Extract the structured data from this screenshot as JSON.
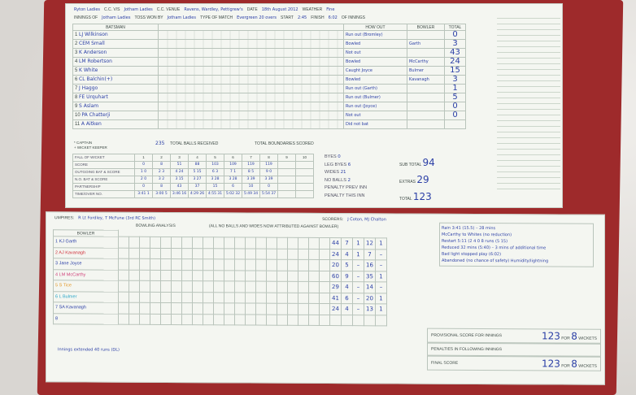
{
  "header": {
    "home_team": "Ryton Ladies",
    "cc_vs_label": "C.C. V/S",
    "opponent": "Jotham Ladies",
    "venue_label": "C.C. VENUE",
    "venue": "Ravens, Wardley, Pettigrew's",
    "date_label": "DATE",
    "date": "18th August 2012",
    "weather_label": "WEATHER",
    "weather": "Fine",
    "innings_of_label": "INNINGS OF",
    "innings_of": "Jotham Ladies",
    "toss_label": "TOSS WON BY",
    "toss": "Jotham Ladies",
    "match_type_label": "TYPE OF MATCH",
    "match_type": "Evergreen 20 overs",
    "start_label": "START",
    "start": "2:45",
    "finish_label": "FINISH",
    "finish": "6:02",
    "of_innings_label": "OF INNINGS"
  },
  "columns": {
    "batsman": "BATSMAN",
    "how_out": "HOW OUT",
    "bowler": "BOWLER",
    "total": "TOTAL"
  },
  "batsmen": [
    {
      "no": "1",
      "name": "LJ Wilkinson",
      "how_out": "Run out (Bromley)",
      "bowler": "",
      "total": "0"
    },
    {
      "no": "2",
      "name": "CEM Small",
      "how_out": "Bowled",
      "bowler": "Garth",
      "total": "3"
    },
    {
      "no": "3",
      "name": "K Anderson",
      "how_out": "Not out",
      "bowler": "",
      "total": "43"
    },
    {
      "no": "4",
      "name": "LM Robertson",
      "how_out": "Bowled",
      "bowler": "McCarthy",
      "total": "24"
    },
    {
      "no": "5",
      "name": "K White",
      "how_out": "Caught Joyce",
      "bowler": "Bulmer",
      "total": "15"
    },
    {
      "no": "6",
      "name": "CL Balchin(+)",
      "how_out": "Bowled",
      "bowler": "Kavanagh",
      "total": "3"
    },
    {
      "no": "7",
      "name": "J Haggo",
      "how_out": "Run out (Garth)",
      "bowler": "",
      "total": "1"
    },
    {
      "no": "8",
      "name": "FE Urquhart",
      "how_out": "Run out (Bulmer)",
      "bowler": "",
      "total": "5"
    },
    {
      "no": "9",
      "name": "S Aslam",
      "how_out": "Run out (Joyce)",
      "bowler": "",
      "total": "0"
    },
    {
      "no": "10",
      "name": "PA Chatterji",
      "how_out": "Not out",
      "bowler": "",
      "total": "0"
    },
    {
      "no": "11",
      "name": "A Aitken",
      "how_out": "Did not bat",
      "bowler": "",
      "total": ""
    }
  ],
  "legend": {
    "captain": "* CAPTAIN",
    "keeper": "+ WICKET KEEPER",
    "balls_received": "235",
    "balls_label": "TOTAL BALLS RECEIVED",
    "boundaries_label": "TOTAL BOUNDARIES SCORED"
  },
  "fall_of_wicket": {
    "labels": [
      "FALL OF WICKET",
      "SCORE",
      "OUTGOING BAT & SCORE",
      "N.O. BAT & SCORE",
      "PARTNERSHIP",
      "TIME/OVER NO."
    ],
    "wickets": [
      "1",
      "2",
      "3",
      "4",
      "5",
      "6",
      "7",
      "8",
      "9",
      "10"
    ],
    "score": [
      "0",
      "8",
      "51",
      "88",
      "103",
      "109",
      "119",
      "119",
      "",
      ""
    ],
    "outgoing": [
      "1 0",
      "2 3",
      "4 24",
      "5 15",
      "6 3",
      "7 1",
      "8 5",
      "9 0",
      "",
      ""
    ],
    "not_out": [
      "2 0",
      "3 2",
      "3 15",
      "3 27",
      "3 28",
      "3 28",
      "3 39",
      "3 39",
      "",
      ""
    ],
    "partnership": [
      "0",
      "8",
      "43",
      "37",
      "15",
      "6",
      "10",
      "0",
      "",
      ""
    ],
    "time_over": [
      "3:41 1",
      "3:00 5",
      "3:46 16",
      "4:29 26",
      "4:55 31",
      "5:02 32",
      "5:49 34",
      "5:54 37",
      "",
      ""
    ]
  },
  "extras": {
    "byes_label": "BYES",
    "byes": "0",
    "leg_byes_label": "LEG BYES",
    "leg_byes": "6",
    "wides_label": "WIDES",
    "wides": "21",
    "no_balls_label": "NO BALLS",
    "no_balls": "2",
    "penalty_label": "PENALTY",
    "prev_inn": "PREV INN",
    "this_inn": "THIS INN",
    "sub_total_label": "SUB TOTAL",
    "sub_total": "94",
    "extras_label": "EXTRAS",
    "extras_total": "29",
    "total_label": "TOTAL",
    "total": "123"
  },
  "lower": {
    "umpires_label": "UMPIRES:",
    "umpires": "R Lt Fordley, T McFune (3rd RC Smith)",
    "scorers_label": "SCORERS:",
    "scorers": "J Coton, MJ Chalton",
    "bowling_analysis": "BOWLING ANALYSIS",
    "note": "(ALL NO BALLS AND WIDES NOW ATTRIBUTED AGAINST BOWLER)",
    "bowler_label": "BOWLER",
    "reason": "Innings extended 40 runs (DL)"
  },
  "bowlers": [
    {
      "name": "KJ Garth",
      "figs": [
        "44",
        "7",
        "1",
        "12",
        "1"
      ],
      "color": "#2b3fa6"
    },
    {
      "name": "AJ Kavanagh",
      "figs": [
        "24",
        "4",
        "1",
        "7",
        "–"
      ],
      "color": "#d0303a"
    },
    {
      "name": "Jane Joyce",
      "figs": [
        "20",
        "5",
        "–",
        "16",
        "–"
      ],
      "color": "#2b3fa6"
    },
    {
      "name": "LM McCarthy",
      "figs": [
        "60",
        "9",
        "–",
        "35",
        "1"
      ],
      "color": "#d0407a"
    },
    {
      "name": "S Tice",
      "figs": [
        "29",
        "4",
        "–",
        "14",
        "–"
      ],
      "color": "#e39a2c"
    },
    {
      "name": "L Bulmer",
      "figs": [
        "41",
        "6",
        "–",
        "20",
        "1"
      ],
      "color": "#2aa6c8"
    },
    {
      "name": "SA Kavanagh",
      "figs": [
        "24",
        "4",
        "–",
        "13",
        "1"
      ],
      "color": "#2b3fa6"
    },
    {
      "name": "",
      "figs": [
        "",
        "",
        "",
        "",
        ""
      ],
      "color": "#2b3fa6"
    }
  ],
  "notes": [
    "Rain 3:41 (15.5) – 28 mins",
    "McCarthy to Whites (no reduction)",
    "Restart 5:11 (2 4 0 8 runs (5 15)",
    "Reduced 32 mins (5:40) – 3 mins of additional time",
    "Bad light stopped play (6:02)",
    "Abandoned (no chance of safety) Humidity/lightning"
  ],
  "summary": {
    "provisional_label": "PROVISIONAL SCORE FOR INNINGS",
    "provisional": "123",
    "for_label": "FOR",
    "provisional_wkts": "8",
    "wickets_label": "WICKETS",
    "penalties_label": "PENALTIES IN FOLLOWING INNINGS",
    "final_label": "FINAL SCORE",
    "final": "123",
    "final_wkts": "8"
  }
}
